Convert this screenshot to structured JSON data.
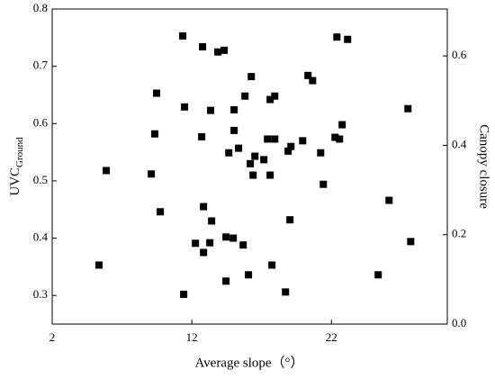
{
  "chart_data": {
    "type": "scatter",
    "xlabel": "Average slope（°）",
    "ylabel": "UVC",
    "ylabel_sub": "Ground",
    "y2label": "Canopy closure",
    "xlim": [
      2,
      30.3
    ],
    "xticks": [
      2,
      12,
      22
    ],
    "ylim": [
      0.25,
      0.8
    ],
    "yticks": [
      0.3,
      0.4,
      0.5,
      0.6,
      0.7,
      0.8
    ],
    "y2lim": [
      0,
      0.705
    ],
    "y2ticks": [
      {
        "value": 0,
        "label": "0.0"
      },
      0.2,
      0.4,
      0.6
    ],
    "series": [
      {
        "color": "#000000",
        "x": [
          5.35,
          5.87,
          9.1,
          9.35,
          9.48,
          9.74,
          11.35,
          11.48,
          11.42,
          12.26,
          12.77,
          12.71,
          12.84,
          12.84,
          13.29,
          13.35,
          13.42,
          13.87,
          14.32,
          14.65,
          14.45,
          14.45,
          14.97,
          15.03,
          15.03,
          15.35,
          15.68,
          15.81,
          16.06,
          16.26,
          16.19,
          16.39,
          16.52,
          17.16,
          17.42,
          17.61,
          17.61,
          17.74,
          17.94,
          17.94,
          18.71,
          18.9,
          19.1,
          19.03,
          19.94,
          20.32,
          20.65,
          21.23,
          21.42,
          22.26,
          22.39,
          22.58,
          22.77,
          23.16,
          25.35,
          26.13,
          27.48,
          27.68
        ],
        "values": [
          0.353,
          0.518,
          0.512,
          0.582,
          0.653,
          0.446,
          0.753,
          0.629,
          0.302,
          0.391,
          0.734,
          0.577,
          0.455,
          0.375,
          0.392,
          0.623,
          0.43,
          0.725,
          0.728,
          0.549,
          0.402,
          0.325,
          0.4,
          0.624,
          0.588,
          0.557,
          0.388,
          0.648,
          0.336,
          0.682,
          0.53,
          0.51,
          0.543,
          0.537,
          0.573,
          0.642,
          0.51,
          0.353,
          0.648,
          0.573,
          0.306,
          0.552,
          0.56,
          0.432,
          0.57,
          0.684,
          0.675,
          0.549,
          0.494,
          0.576,
          0.751,
          0.573,
          0.598,
          0.747,
          0.336,
          0.466,
          0.626,
          0.394
        ]
      }
    ]
  }
}
